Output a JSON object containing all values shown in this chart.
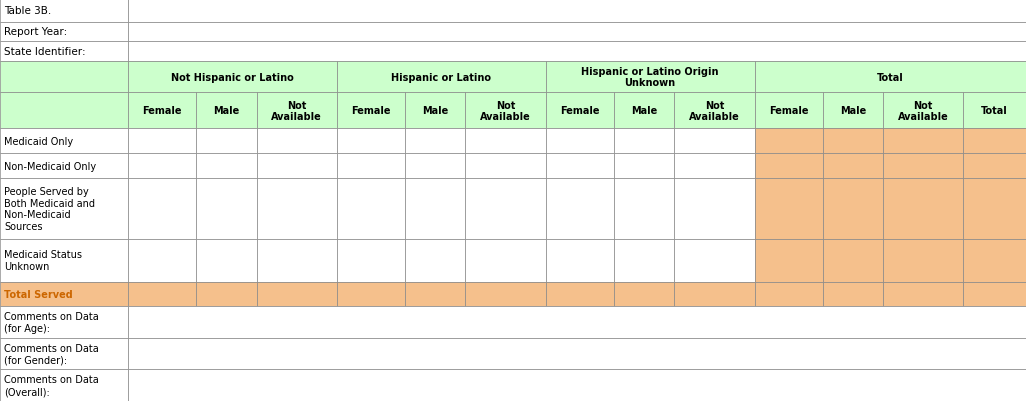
{
  "title_rows": [
    [
      "Table 3B.",
      ""
    ],
    [
      "Report Year:",
      ""
    ],
    [
      "State Identifier:",
      ""
    ]
  ],
  "header_group1": "Not Hispanic or Latino",
  "header_group2": "Hispanic or Latino",
  "header_group3": "Hispanic or Latino Origin\nUnknown",
  "header_group4": "Total",
  "sub_headers": [
    "Female",
    "Male",
    "Not\nAvailable",
    "Female",
    "Male",
    "Not\nAvailable",
    "Female",
    "Male",
    "Not\nAvailable",
    "Female",
    "Male",
    "Not\nAvailable",
    "Total"
  ],
  "row_labels": [
    "Medicaid Only",
    "Non-Medicaid Only",
    "People Served by\nBoth Medicaid and\nNon-Medicaid\nSources",
    "Medicaid Status\nUnknown",
    "Total Served"
  ],
  "header_bg": "#ccffcc",
  "orange_bg": "#f5c08c",
  "total_row_label_color": "#cc6600",
  "white_bg": "#ffffff",
  "border_color": "#888888",
  "text_color": "#000000",
  "comments_labels": [
    "Comments on Data\n(for Age):",
    "Comments on Data\n(for Gender):",
    "Comments on Data\n(Overall):"
  ]
}
